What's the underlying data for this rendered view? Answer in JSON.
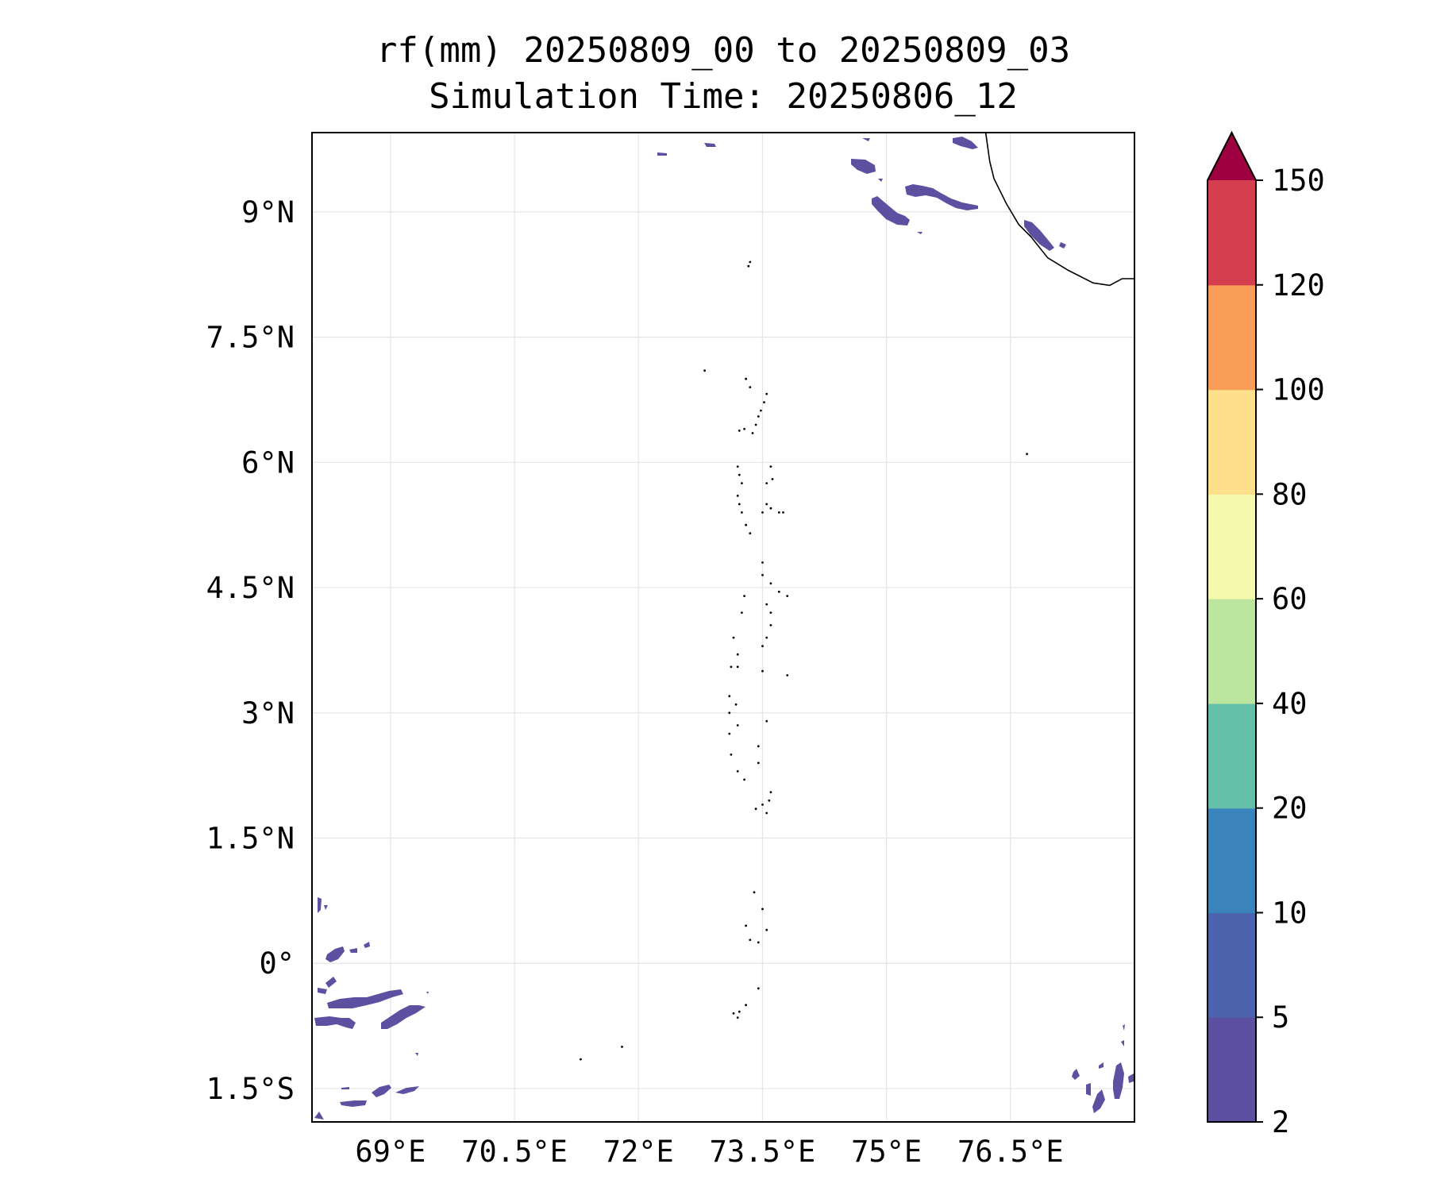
{
  "title": {
    "line1": "rf(mm) 20250809_00 to 20250809_03",
    "line2": "Simulation Time: 20250806_12"
  },
  "map": {
    "lon_range": [
      68.05,
      78.0
    ],
    "lat_range": [
      -1.9,
      9.95
    ],
    "lon_ticks": [
      {
        "value": 69.0,
        "label": "69°E"
      },
      {
        "value": 70.5,
        "label": "70.5°E"
      },
      {
        "value": 72.0,
        "label": "72°E"
      },
      {
        "value": 73.5,
        "label": "73.5°E"
      },
      {
        "value": 75.0,
        "label": "75°E"
      },
      {
        "value": 76.5,
        "label": "76.5°E"
      }
    ],
    "lat_ticks": [
      {
        "value": 9.0,
        "label": "9°N"
      },
      {
        "value": 7.5,
        "label": "7.5°N"
      },
      {
        "value": 6.0,
        "label": "6°N"
      },
      {
        "value": 4.5,
        "label": "4.5°N"
      },
      {
        "value": 3.0,
        "label": "3°N"
      },
      {
        "value": 1.5,
        "label": "1.5°N"
      },
      {
        "value": 0.0,
        "label": "0°"
      },
      {
        "value": -1.5,
        "label": "1.5°S"
      }
    ],
    "gridlines": true,
    "coastline": [
      [
        76.2,
        9.95
      ],
      [
        76.25,
        9.6
      ],
      [
        76.3,
        9.4
      ],
      [
        76.45,
        9.1
      ],
      [
        76.6,
        8.85
      ],
      [
        76.75,
        8.7
      ],
      [
        76.95,
        8.45
      ],
      [
        77.2,
        8.3
      ],
      [
        77.5,
        8.15
      ],
      [
        77.7,
        8.12
      ],
      [
        77.85,
        8.2
      ],
      [
        78.0,
        8.2
      ],
      [
        78.0,
        8.3
      ]
    ],
    "islands": [
      [
        73.55,
        6.82
      ],
      [
        73.52,
        6.72
      ],
      [
        73.48,
        6.62
      ],
      [
        73.45,
        6.55
      ],
      [
        73.42,
        6.45
      ],
      [
        73.38,
        6.35
      ],
      [
        73.35,
        6.9
      ],
      [
        73.3,
        7.0
      ],
      [
        73.28,
        6.4
      ],
      [
        73.22,
        6.38
      ],
      [
        73.2,
        5.95
      ],
      [
        73.22,
        5.85
      ],
      [
        73.25,
        5.75
      ],
      [
        73.2,
        5.6
      ],
      [
        73.22,
        5.5
      ],
      [
        73.25,
        5.4
      ],
      [
        73.3,
        5.25
      ],
      [
        73.35,
        5.15
      ],
      [
        73.6,
        5.95
      ],
      [
        73.62,
        5.8
      ],
      [
        73.55,
        5.75
      ],
      [
        73.55,
        5.5
      ],
      [
        73.6,
        5.45
      ],
      [
        73.7,
        5.4
      ],
      [
        73.75,
        5.4
      ],
      [
        73.5,
        5.4
      ],
      [
        73.5,
        4.8
      ],
      [
        73.5,
        4.65
      ],
      [
        73.6,
        4.55
      ],
      [
        73.7,
        4.45
      ],
      [
        73.8,
        4.4
      ],
      [
        73.55,
        4.3
      ],
      [
        73.6,
        4.2
      ],
      [
        73.28,
        4.4
      ],
      [
        73.25,
        4.2
      ],
      [
        73.15,
        3.9
      ],
      [
        73.2,
        3.7
      ],
      [
        73.2,
        3.55
      ],
      [
        73.12,
        3.55
      ],
      [
        73.1,
        3.2
      ],
      [
        73.18,
        3.1
      ],
      [
        73.2,
        2.85
      ],
      [
        73.1,
        2.75
      ],
      [
        73.1,
        3.0
      ],
      [
        73.12,
        2.5
      ],
      [
        73.2,
        2.3
      ],
      [
        73.28,
        2.2
      ],
      [
        73.45,
        2.4
      ],
      [
        73.55,
        2.9
      ],
      [
        73.5,
        3.5
      ],
      [
        73.5,
        3.8
      ],
      [
        73.55,
        3.9
      ],
      [
        73.6,
        4.05
      ],
      [
        73.8,
        3.45
      ],
      [
        73.45,
        2.6
      ],
      [
        73.42,
        1.85
      ],
      [
        73.5,
        1.9
      ],
      [
        73.58,
        1.95
      ],
      [
        73.6,
        2.05
      ],
      [
        73.55,
        1.8
      ],
      [
        73.3,
        0.45
      ],
      [
        73.35,
        0.28
      ],
      [
        73.45,
        0.25
      ],
      [
        73.5,
        0.65
      ],
      [
        73.55,
        0.4
      ],
      [
        73.4,
        0.85
      ],
      [
        73.3,
        -0.5
      ],
      [
        73.15,
        -0.6
      ],
      [
        73.2,
        -0.65
      ],
      [
        73.22,
        -0.58
      ],
      [
        73.45,
        -0.3
      ],
      [
        73.35,
        8.4
      ],
      [
        73.33,
        8.35
      ],
      [
        71.8,
        -1.0
      ],
      [
        71.3,
        -1.15
      ],
      [
        76.7,
        6.1
      ],
      [
        72.8,
        7.1
      ]
    ],
    "rain_color": "#5e50a1"
  },
  "colorbar": {
    "levels": [
      2,
      5,
      10,
      20,
      40,
      60,
      80,
      100,
      120,
      150
    ],
    "colors": [
      "#5e50a1",
      "#4d63ad",
      "#3a83bb",
      "#66c0a9",
      "#bce59f",
      "#f4faad",
      "#fddf8c",
      "#f99e59",
      "#d53e4f"
    ],
    "extend_color": "#9e0142",
    "tick_labels": [
      "2",
      "5",
      "10",
      "20",
      "40",
      "60",
      "80",
      "100",
      "120",
      "150"
    ]
  }
}
